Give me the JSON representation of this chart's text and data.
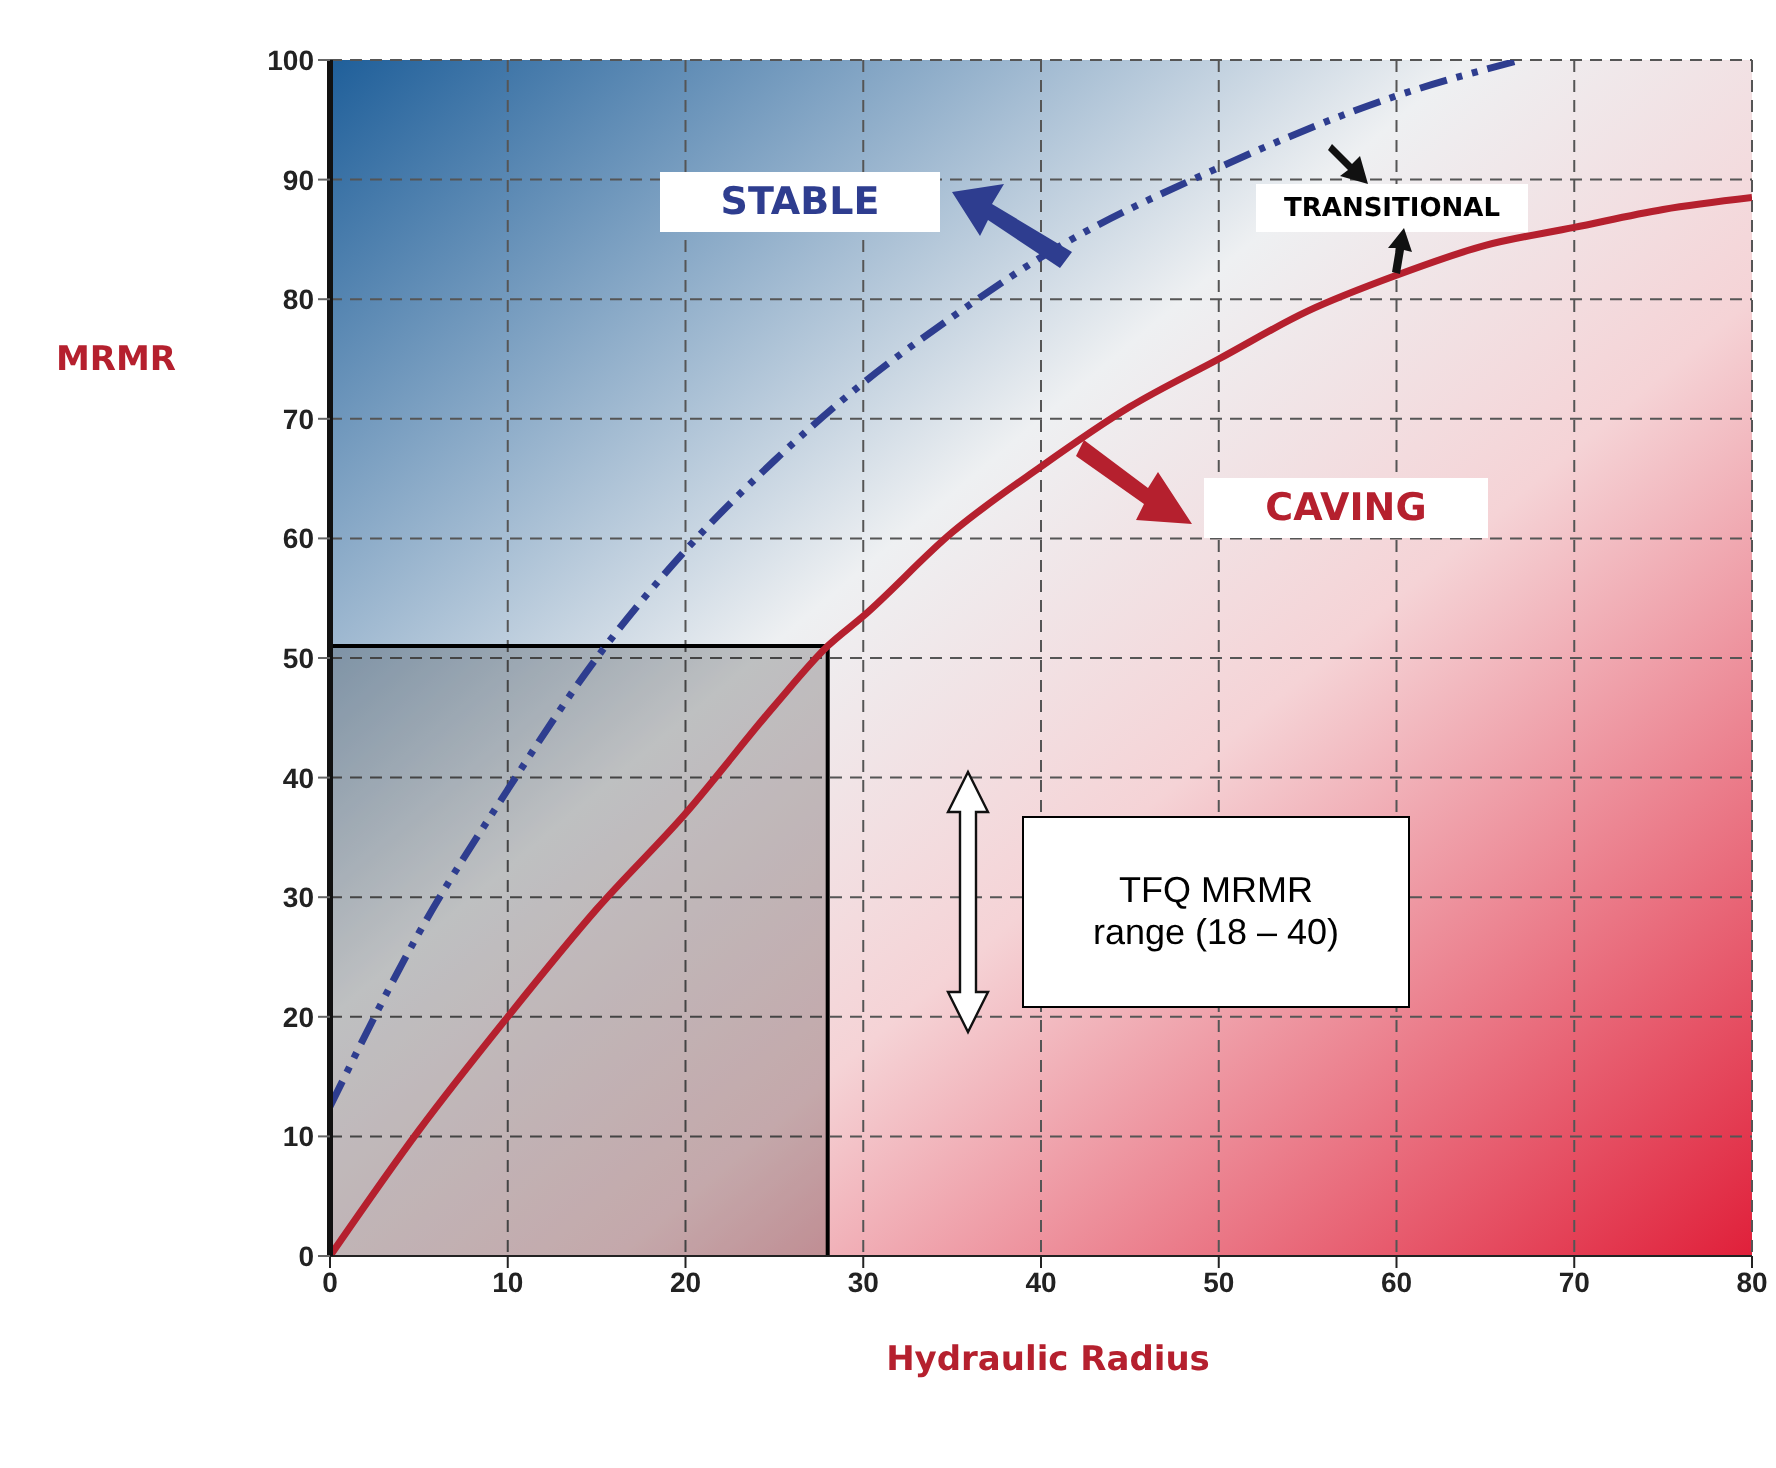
{
  "chart_data": {
    "type": "line",
    "xlabel": "Hydraulic Radius",
    "ylabel": "MRMR",
    "xlim": [
      0,
      80
    ],
    "xticks": [
      0,
      10,
      20,
      30,
      40,
      50,
      60,
      70,
      80
    ],
    "ylim": [
      0,
      100
    ],
    "yticks": [
      0,
      10,
      20,
      30,
      40,
      50,
      60,
      70,
      80,
      90,
      100
    ],
    "grid": true,
    "marker": "none",
    "series": [
      {
        "color": "#2e3d8f",
        "line_style": "dashdot",
        "x": [
          0,
          5,
          10,
          15,
          20,
          25,
          30,
          35,
          40,
          50,
          60,
          67
        ],
        "values": [
          12.5,
          27,
          39,
          50,
          59,
          66.5,
          73,
          78.5,
          83.5,
          91,
          97,
          100
        ]
      },
      {
        "color": "#b5202e",
        "line_style": "solid",
        "x": [
          0,
          5,
          10,
          15,
          20,
          25,
          28,
          30,
          35,
          40,
          45,
          50,
          55,
          60,
          65,
          70,
          75,
          80
        ],
        "values": [
          0,
          10.5,
          20,
          29,
          37,
          46,
          51,
          53.5,
          60.5,
          66,
          71,
          75,
          79,
          82,
          84.5,
          86,
          87.5,
          88.5
        ]
      },
      {
        "type": "area",
        "color": "#000000",
        "x": [
          0,
          28,
          28
        ],
        "values": [
          51,
          51,
          0
        ]
      }
    ],
    "annotations": [
      "STABLE",
      "TRANSITIONAL",
      "CAVING",
      "TFQ MRMR range (18 – 40)"
    ]
  }
}
